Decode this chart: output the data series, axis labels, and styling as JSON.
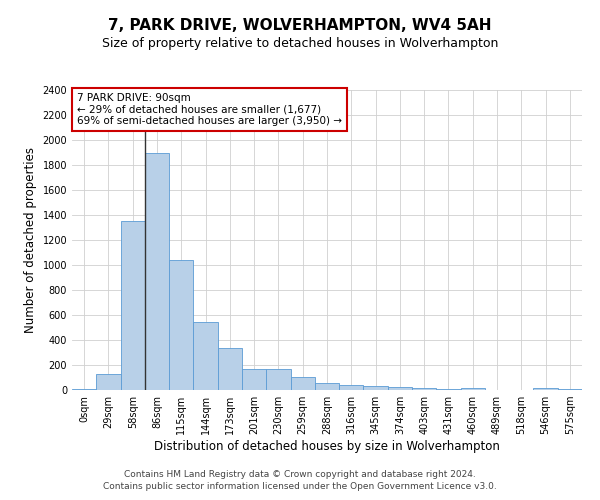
{
  "title1": "7, PARK DRIVE, WOLVERHAMPTON, WV4 5AH",
  "title2": "Size of property relative to detached houses in Wolverhampton",
  "xlabel": "Distribution of detached houses by size in Wolverhampton",
  "ylabel": "Number of detached properties",
  "footnote1": "Contains HM Land Registry data © Crown copyright and database right 2024.",
  "footnote2": "Contains public sector information licensed under the Open Government Licence v3.0.",
  "categories": [
    "0sqm",
    "29sqm",
    "58sqm",
    "86sqm",
    "115sqm",
    "144sqm",
    "173sqm",
    "201sqm",
    "230sqm",
    "259sqm",
    "288sqm",
    "316sqm",
    "345sqm",
    "374sqm",
    "403sqm",
    "431sqm",
    "460sqm",
    "489sqm",
    "518sqm",
    "546sqm",
    "575sqm"
  ],
  "values": [
    10,
    130,
    1350,
    1900,
    1040,
    545,
    340,
    170,
    170,
    105,
    60,
    40,
    30,
    25,
    20,
    10,
    20,
    2,
    2,
    20,
    5
  ],
  "bar_color": "#b8d0e8",
  "bar_edge_color": "#5b9bd5",
  "vline_x_index": 3,
  "vline_color": "#333333",
  "annotation_text": "7 PARK DRIVE: 90sqm\n← 29% of detached houses are smaller (1,677)\n69% of semi-detached houses are larger (3,950) →",
  "annotation_box_color": "#ffffff",
  "annotation_border_color": "#cc0000",
  "ylim": [
    0,
    2400
  ],
  "yticks": [
    0,
    200,
    400,
    600,
    800,
    1000,
    1200,
    1400,
    1600,
    1800,
    2000,
    2200,
    2400
  ],
  "bg_color": "#ffffff",
  "grid_color": "#d0d0d0",
  "title1_fontsize": 11,
  "title2_fontsize": 9,
  "xlabel_fontsize": 8.5,
  "ylabel_fontsize": 8.5,
  "tick_fontsize": 7,
  "footnote_fontsize": 6.5,
  "annotation_fontsize": 7.5
}
